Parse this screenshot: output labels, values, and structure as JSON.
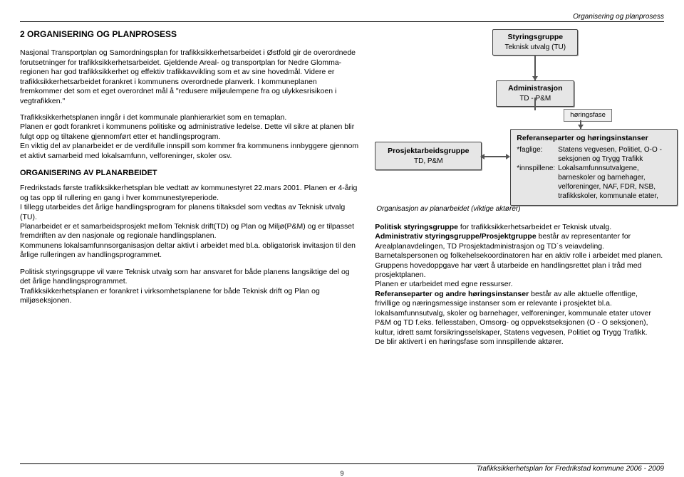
{
  "header": {
    "runner": "Organisering og planprosess"
  },
  "left": {
    "section_title": "2    ORGANISERING OG PLANPROSESS",
    "p1": "Nasjonal Transportplan og Samordningsplan for trafikksikkerhetsarbeidet i Østfold gir de overordnede forutsetninger for trafikksikkerhetsarbeidet.",
    "p2": "Gjeldende Areal- og transportplan for Nedre Glomma-regionen har god trafikksikkerhet og effektiv trafikkavvikling som et av sine hovedmål.",
    "p3": "Videre er trafikksikkerhetsarbeidet forankret i kommunens overordnede planverk. I kommuneplanen fremkommer det som et eget overordnet mål å \"redusere miljøulempene fra og ulykkesrisikoen i vegtrafikken.\"",
    "p4": "Trafikksikkerhetsplanen inngår i det kommunale planhierarkiet som en temaplan.",
    "p5": "Planen er godt forankret i kommunens politiske og administrative ledelse. Dette vil sikre at planen blir fulgt opp og tiltakene gjennomført etter et handlingsprogram.",
    "p6": "En viktig del av planarbeidet er de verdifulle innspill som kommer fra kommunens innbyggere gjennom et aktivt samarbeid med lokalsamfunn, velforeninger, skoler osv.",
    "subhead": "ORGANISERING AV PLANARBEIDET",
    "p7": "Fredrikstads første trafikksikkerhetsplan ble vedtatt av kommunestyret 22.mars 2001. Planen er 4-årig og tas opp til rullering en gang i hver kommunestyreperiode.",
    "p8": "I tillegg utarbeides det årlige handlingsprogram for planens tiltaksdel som vedtas av Teknisk utvalg (TU).",
    "p9": "Planarbeidet er et samarbeidsprosjekt mellom Teknisk drift(TD) og Plan og Miljø(P&M) og er tilpasset fremdriften av den nasjonale og regionale handlingsplanen.",
    "p10": "Kommunens lokalsamfunnsorganisasjon deltar aktivt i arbeidet med bl.a. obligatorisk invitasjon til den årlige rulleringen av handlingsprogrammet.",
    "p11": "Politisk styringsgruppe vil være Teknisk utvalg som har ansvaret for både planens langsiktige del og det årlige handlingsprogrammet.",
    "p12": "Trafikksikkerhetsplanen er forankret i virksomhetsplanene for både Teknisk drift og Plan og miljøseksjonen."
  },
  "diagram": {
    "sg_title": "Styringsgruppe",
    "sg_sub": "Teknisk utvalg (TU)",
    "adm_title": "Administrasjon",
    "adm_sub": "TD  - P&M",
    "prosj_title": "Prosjektarbeidsgruppe",
    "prosj_sub": "TD, P&M",
    "phase": "høringsfase",
    "ref_title": "Referanseparter og høringsinstanser",
    "ref_faglige_label": "*faglige:",
    "ref_faglige": "Statens vegvesen, Politiet, O-O -seksjonen og Trygg Trafikk",
    "ref_innspill_label": "*innspillene:",
    "ref_innspill": "Lokalsamfunnsutvalgene, barneskoler og  barnehager, velforeninger, NAF, FDR, NSB, trafikkskoler, kommunale etater,",
    "caption": "Organisasjon av planarbeidet (viktige aktører)"
  },
  "right": {
    "p1a": "Politisk styringsgruppe",
    "p1b": " for trafikksikkerhetsarbeidet er Teknisk utvalg.",
    "p2a": "Administrativ styringsgruppe/Prosjektgruppe",
    "p2b": " består av representanter for Arealplanavdelingen, TD Prosjektadministrasjon og TD´s veiavdeling. Barnetalspersonen og folkehelsekoordinatoren har en aktiv rolle i arbeidet med planen.",
    "p3": "Gruppens hovedoppgave har vært å utarbeide en handlingsrettet plan i tråd med prosjektplanen.",
    "p4": "Planen er utarbeidet med egne ressurser.",
    "p5a": "Referanseparter og andre høringsinstanser",
    "p5b": " består av alle aktuelle offentlige, frivillige og næringsmessige instanser som er relevante i prosjektet bl.a. lokalsamfunnsutvalg, skoler og barnehager, velforeninger, kommunale etater utover P&M og TD f.eks.  fellesstaben, Omsorg- og oppvekstseksjonen (O - O seksjonen), kultur, idrett samt forsikringsselskaper, Statens vegvesen, Politiet og Trygg Trafikk.",
    "p6": "De blir aktivert i en høringsfase som innspillende aktører."
  },
  "footer": {
    "text": "Trafikksikkerhetsplan for Fredrikstad kommune 2006  -  2009",
    "page": "9"
  }
}
